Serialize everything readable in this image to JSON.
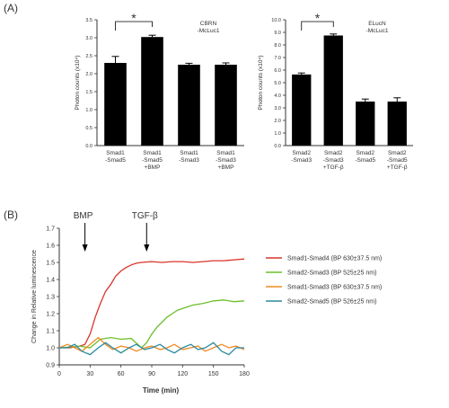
{
  "panels": {
    "a_label": "(A)",
    "b_label": "(B)"
  },
  "chart_data": [
    {
      "type": "bar",
      "title": "CBRN -McLuc1",
      "ylabel": "Photon counts (x10⁴)",
      "ylim": [
        0,
        3.5
      ],
      "yticks": [
        0,
        0.5,
        1.0,
        1.5,
        2.0,
        2.5,
        3.0,
        3.5
      ],
      "categories": [
        [
          "Smad1",
          "-Smad5"
        ],
        [
          "Smad1",
          "-Smad5",
          "+BMP"
        ],
        [
          "Smad1",
          "-Smad3"
        ],
        [
          "Smad1",
          "-Smad3",
          "+BMP"
        ]
      ],
      "values": [
        2.3,
        3.02,
        2.25,
        2.25
      ],
      "errors": [
        0.18,
        0.05,
        0.04,
        0.05
      ],
      "significance": {
        "from": 0,
        "to": 1,
        "label": "*"
      }
    },
    {
      "type": "bar",
      "title": "ELucN -McLuc1",
      "ylabel": "Photon counts (x10⁴)",
      "ylim": [
        0,
        10.0
      ],
      "yticks": [
        0,
        1.0,
        2.0,
        3.0,
        4.0,
        5.0,
        6.0,
        7.0,
        8.0,
        9.0,
        10.0
      ],
      "categories": [
        [
          "Smad2",
          "-Smad3"
        ],
        [
          "Smad2",
          "-Smad3",
          "+TGF-β"
        ],
        [
          "Smad2",
          "-Smad5"
        ],
        [
          "Smad2",
          "-Smad5",
          "+TGF-β"
        ]
      ],
      "values": [
        5.65,
        8.75,
        3.5,
        3.5
      ],
      "errors": [
        0.12,
        0.12,
        0.2,
        0.3
      ],
      "significance": {
        "from": 0,
        "to": 1,
        "label": "*"
      }
    },
    {
      "type": "line",
      "xlabel": "Time (min)",
      "ylabel": "Change in Relative luminescence",
      "xlim": [
        0,
        180
      ],
      "ylim": [
        0.9,
        1.7
      ],
      "xticks": [
        0,
        30,
        60,
        90,
        120,
        150,
        180
      ],
      "yticks": [
        0.9,
        1.0,
        1.1,
        1.2,
        1.3,
        1.4,
        1.5,
        1.6,
        1.7
      ],
      "annotations": [
        {
          "label": "BMP",
          "x": 25
        },
        {
          "label": "TGF-β",
          "x": 85
        }
      ],
      "legend_position": "right",
      "series": [
        {
          "name": "Smad1-Smad4 (BP 630±37.5 nm)",
          "color": "#d9342b",
          "points": [
            [
              0,
              1.0
            ],
            [
              10,
              1.0
            ],
            [
              20,
              1.01
            ],
            [
              25,
              1.02
            ],
            [
              30,
              1.08
            ],
            [
              35,
              1.18
            ],
            [
              40,
              1.26
            ],
            [
              45,
              1.33
            ],
            [
              50,
              1.37
            ],
            [
              55,
              1.42
            ],
            [
              60,
              1.45
            ],
            [
              65,
              1.47
            ],
            [
              70,
              1.485
            ],
            [
              75,
              1.495
            ],
            [
              80,
              1.5
            ],
            [
              90,
              1.505
            ],
            [
              100,
              1.5
            ],
            [
              110,
              1.505
            ],
            [
              120,
              1.505
            ],
            [
              130,
              1.5
            ],
            [
              140,
              1.505
            ],
            [
              150,
              1.51
            ],
            [
              160,
              1.51
            ],
            [
              170,
              1.515
            ],
            [
              180,
              1.52
            ]
          ]
        },
        {
          "name": "Smad2-Smad3 (BP 525±25 nm)",
          "color": "#6cbf2b",
          "points": [
            [
              0,
              1.0
            ],
            [
              10,
              1.005
            ],
            [
              20,
              1.01
            ],
            [
              30,
              1.0
            ],
            [
              40,
              1.05
            ],
            [
              50,
              1.06
            ],
            [
              60,
              1.05
            ],
            [
              70,
              1.055
            ],
            [
              80,
              1.0
            ],
            [
              85,
              1.03
            ],
            [
              90,
              1.08
            ],
            [
              95,
              1.12
            ],
            [
              100,
              1.15
            ],
            [
              105,
              1.18
            ],
            [
              110,
              1.2
            ],
            [
              115,
              1.22
            ],
            [
              120,
              1.23
            ],
            [
              125,
              1.24
            ],
            [
              130,
              1.25
            ],
            [
              140,
              1.26
            ],
            [
              150,
              1.275
            ],
            [
              160,
              1.28
            ],
            [
              170,
              1.27
            ],
            [
              180,
              1.275
            ]
          ]
        },
        {
          "name": "Smad1-Smad3 (BP 630±37.5 nm)",
          "color": "#f08a24",
          "points": [
            [
              0,
              1.0
            ],
            [
              8,
              1.02
            ],
            [
              15,
              1.0
            ],
            [
              22,
              0.98
            ],
            [
              30,
              1.02
            ],
            [
              38,
              1.06
            ],
            [
              45,
              1.02
            ],
            [
              52,
              0.99
            ],
            [
              60,
              1.01
            ],
            [
              68,
              1.0
            ],
            [
              75,
              0.98
            ],
            [
              83,
              1.0
            ],
            [
              90,
              1.01
            ],
            [
              98,
              0.99
            ],
            [
              105,
              1.0
            ],
            [
              112,
              1.02
            ],
            [
              120,
              0.99
            ],
            [
              128,
              1.0
            ],
            [
              135,
              1.01
            ],
            [
              142,
              0.98
            ],
            [
              150,
              1.0
            ],
            [
              158,
              1.02
            ],
            [
              165,
              1.0
            ],
            [
              172,
              1.01
            ],
            [
              180,
              0.99
            ]
          ]
        },
        {
          "name": "Smad2-Smad5 (BP 526±25 nm)",
          "color": "#2a8aa0",
          "points": [
            [
              0,
              1.0
            ],
            [
              8,
              1.0
            ],
            [
              15,
              1.02
            ],
            [
              22,
              0.98
            ],
            [
              30,
              0.96
            ],
            [
              38,
              1.0
            ],
            [
              45,
              1.03
            ],
            [
              52,
              1.0
            ],
            [
              60,
              0.97
            ],
            [
              68,
              1.0
            ],
            [
              75,
              1.02
            ],
            [
              83,
              0.99
            ],
            [
              90,
              1.0
            ],
            [
              98,
              1.02
            ],
            [
              105,
              0.99
            ],
            [
              112,
              0.97
            ],
            [
              120,
              1.0
            ],
            [
              128,
              1.02
            ],
            [
              135,
              0.99
            ],
            [
              142,
              1.0
            ],
            [
              150,
              1.03
            ],
            [
              158,
              0.98
            ],
            [
              165,
              0.96
            ],
            [
              172,
              1.0
            ],
            [
              180,
              1.0
            ]
          ]
        }
      ]
    }
  ]
}
